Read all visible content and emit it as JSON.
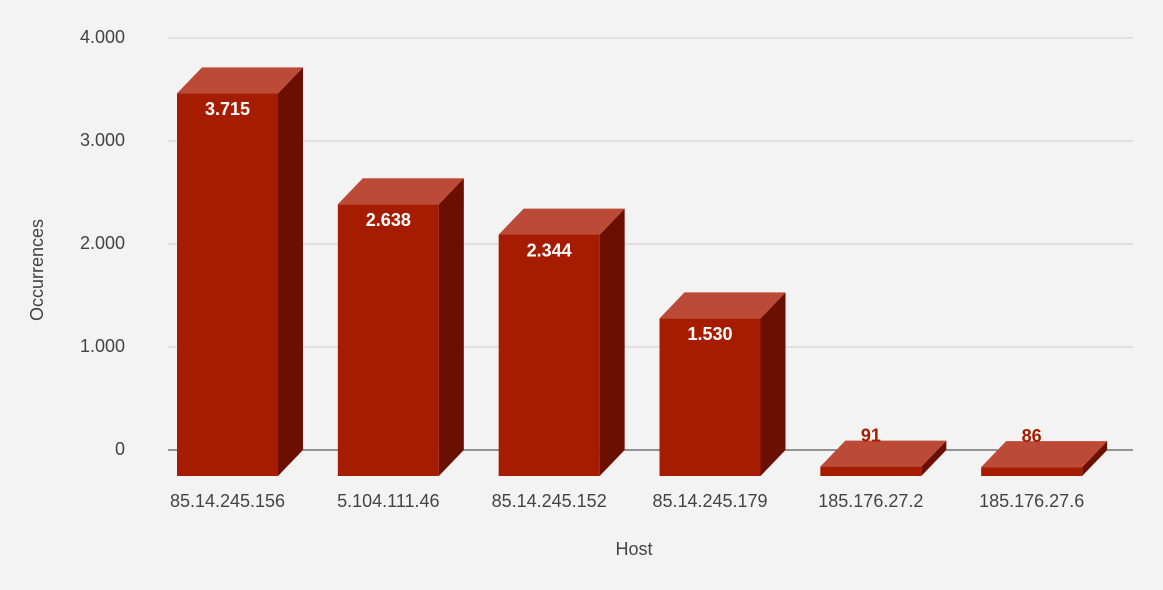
{
  "chart_data": {
    "type": "bar3d",
    "x_label": "Host",
    "y_label": "Occurrences",
    "categories": [
      "85.14.245.156",
      "5.104.111.46",
      "85.14.245.152",
      "85.14.245.179",
      "185.176.27.2",
      "185.176.27.6"
    ],
    "values": [
      3715,
      2638,
      2344,
      1530,
      91,
      86
    ],
    "value_labels": [
      "3.715",
      "2.638",
      "2.344",
      "1.530",
      "91",
      "86"
    ],
    "color": "#a61c00",
    "ylim": [
      0,
      4000
    ],
    "yticks": [
      0,
      {
        "value": 1000,
        "label": "1.000"
      },
      {
        "value": 2000,
        "label": "2.000"
      },
      {
        "value": 3000,
        "label": "3.000"
      },
      {
        "value": 4000,
        "label": "4.000"
      }
    ],
    "grid": true
  }
}
